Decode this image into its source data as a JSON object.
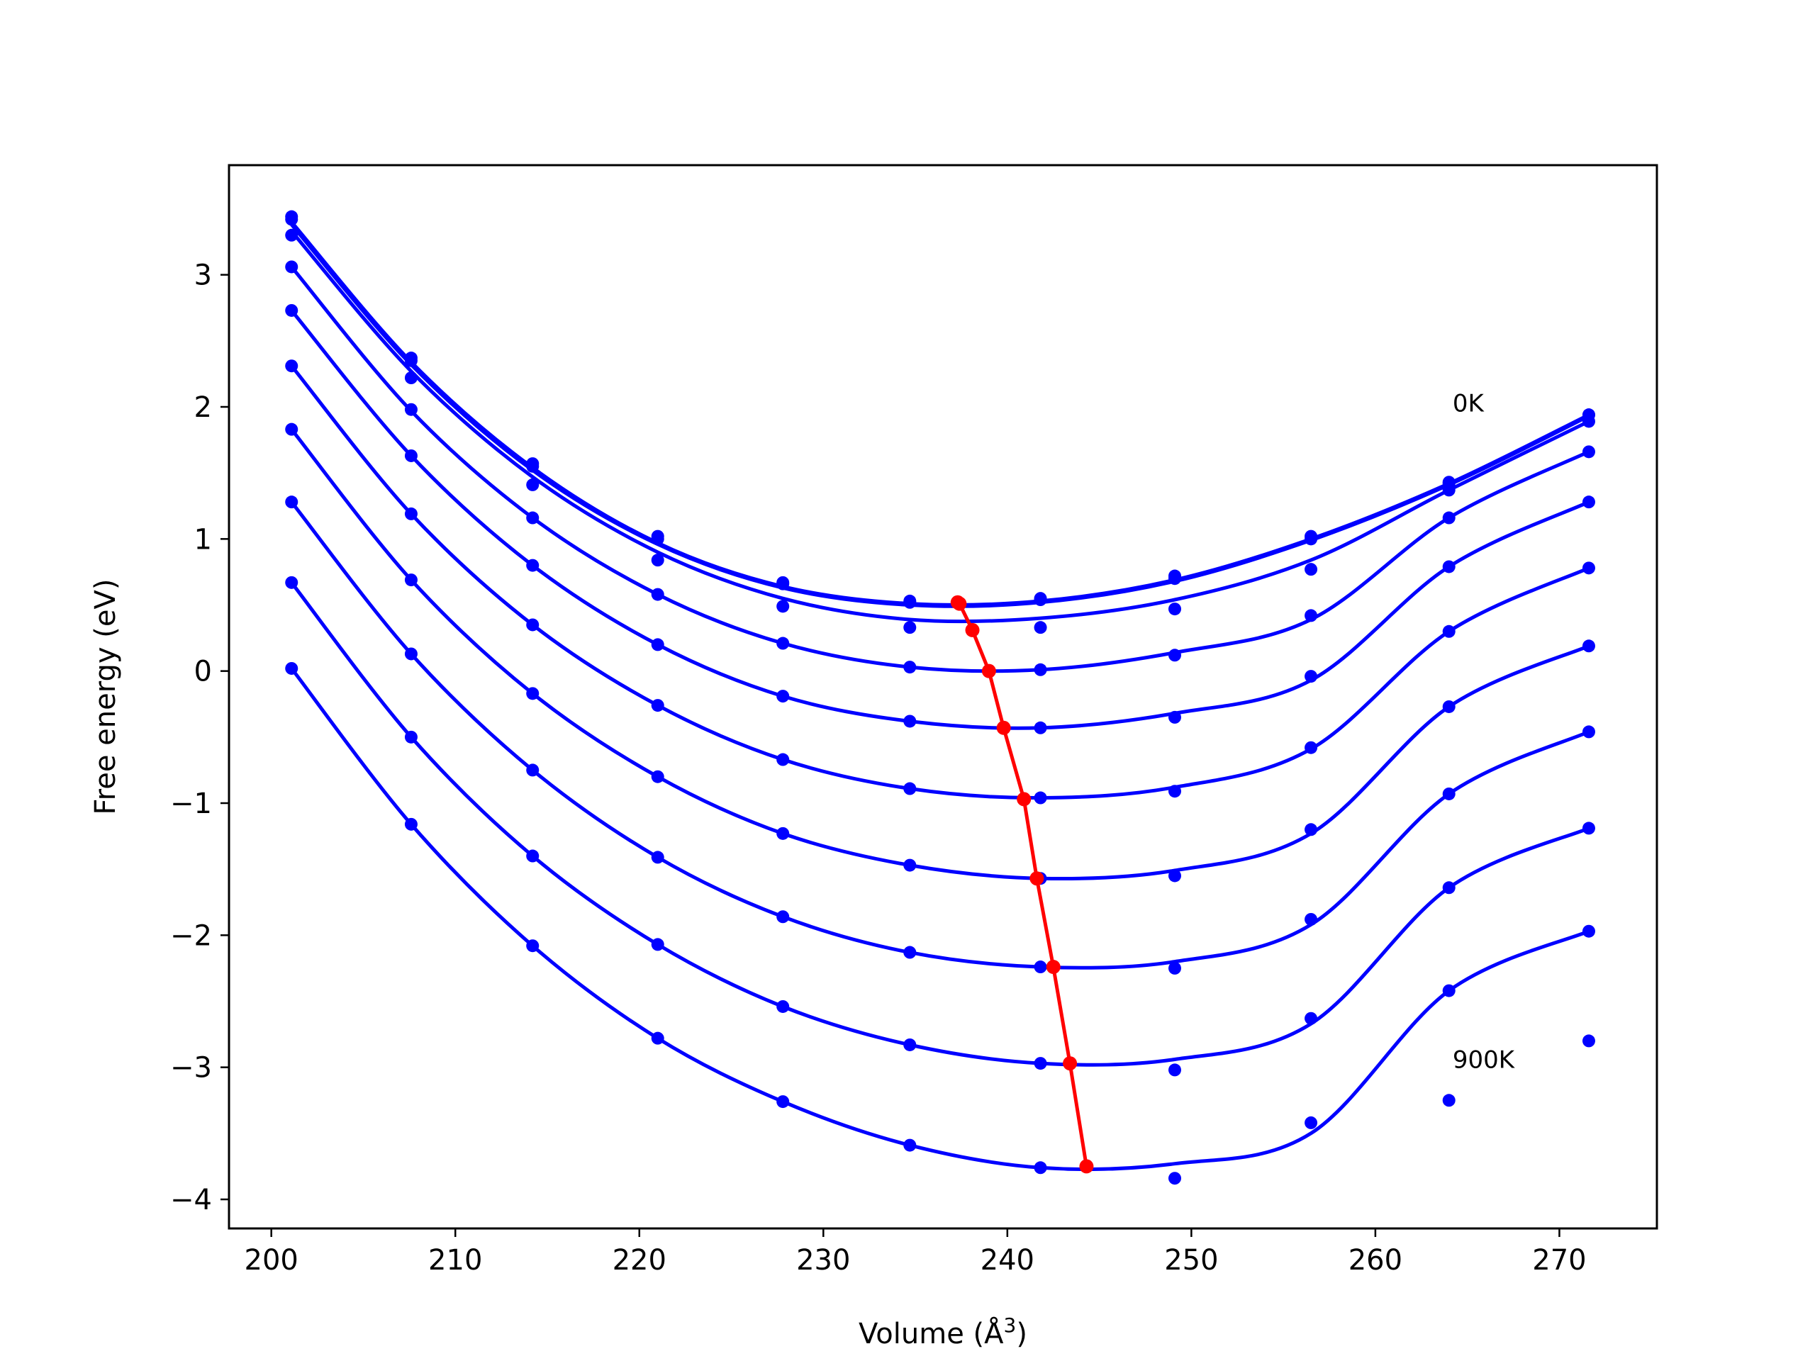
{
  "chart_data": {
    "type": "line",
    "title": "",
    "xlabel": "Volume (Å",
    "xlabel_sup": "3",
    "xlabel_end": ")",
    "ylabel": "Free energy (eV)",
    "xlim": [
      197.7,
      275.3
    ],
    "ylim": [
      -4.22,
      3.83
    ],
    "xticks": [
      200,
      210,
      220,
      230,
      240,
      250,
      260,
      270
    ],
    "yticks": [
      -4,
      -3,
      -2,
      -1,
      0,
      1,
      2,
      3
    ],
    "grid": false,
    "colors": {
      "fit": "#0000ff",
      "minima": "#ff0000",
      "frame": "#000000"
    },
    "annotations": [
      {
        "text": "0K",
        "x": 264.2,
        "y": 2.03
      },
      {
        "text": "900K",
        "x": 264.2,
        "y": -2.94
      }
    ],
    "volumes": [
      201.1,
      207.6,
      214.2,
      221.0,
      227.8,
      234.7,
      241.8,
      249.1,
      256.5,
      264.0,
      271.6
    ],
    "series": [
      {
        "values": [
          3.44,
          2.37,
          1.57,
          1.02,
          0.67,
          0.53,
          0.55,
          0.72,
          1.02,
          1.43,
          1.94
        ],
        "fit": [
          3.4,
          2.34,
          1.54,
          0.97,
          0.64,
          0.51,
          0.53,
          0.69,
          1.0,
          1.42,
          1.94
        ]
      },
      {
        "values": [
          3.42,
          2.35,
          1.55,
          1.0,
          0.66,
          0.52,
          0.54,
          0.7,
          1.0,
          1.42,
          1.94
        ],
        "fit": [
          3.38,
          2.32,
          1.52,
          0.96,
          0.63,
          0.5,
          0.52,
          0.68,
          0.99,
          1.41,
          1.93
        ]
      },
      {
        "values": [
          3.3,
          2.22,
          1.41,
          0.84,
          0.49,
          0.33,
          0.33,
          0.47,
          0.77,
          1.37,
          1.89
        ],
        "fit": [
          3.33,
          2.27,
          1.47,
          0.9,
          0.55,
          0.39,
          0.4,
          0.54,
          0.84,
          1.37,
          1.89
        ]
      },
      {
        "values": [
          3.06,
          1.98,
          1.16,
          0.58,
          0.21,
          0.03,
          0.01,
          0.12,
          0.42,
          1.16,
          1.66
        ],
        "fit": [
          3.06,
          1.97,
          1.16,
          0.58,
          0.21,
          0.03,
          0.01,
          0.14,
          0.39,
          1.16,
          1.66
        ]
      },
      {
        "values": [
          2.73,
          1.63,
          0.8,
          0.2,
          -0.19,
          -0.38,
          -0.43,
          -0.35,
          -0.04,
          0.79,
          1.28
        ],
        "fit": [
          2.73,
          1.63,
          0.8,
          0.2,
          -0.19,
          -0.38,
          -0.43,
          -0.32,
          -0.07,
          0.79,
          1.28
        ]
      },
      {
        "values": [
          2.31,
          1.19,
          0.35,
          -0.26,
          -0.67,
          -0.89,
          -0.96,
          -0.91,
          -0.58,
          0.3,
          0.78
        ],
        "fit": [
          2.31,
          1.19,
          0.35,
          -0.26,
          -0.67,
          -0.89,
          -0.96,
          -0.88,
          -0.59,
          0.3,
          0.78
        ]
      },
      {
        "values": [
          1.83,
          0.69,
          -0.17,
          -0.8,
          -1.23,
          -1.47,
          -1.57,
          -1.55,
          -1.2,
          -0.27,
          0.19
        ],
        "fit": [
          1.83,
          0.69,
          -0.17,
          -0.8,
          -1.23,
          -1.47,
          -1.57,
          -1.51,
          -1.23,
          -0.27,
          0.19
        ]
      },
      {
        "values": [
          1.28,
          0.13,
          -0.75,
          -1.41,
          -1.86,
          -2.13,
          -2.24,
          -2.25,
          -1.88,
          -0.93,
          -0.46
        ],
        "fit": [
          1.28,
          0.13,
          -0.75,
          -1.41,
          -1.86,
          -2.13,
          -2.24,
          -2.2,
          -1.92,
          -0.93,
          -0.46
        ]
      },
      {
        "values": [
          0.67,
          -0.5,
          -1.4,
          -2.07,
          -2.54,
          -2.83,
          -2.97,
          -3.02,
          -2.63,
          -1.64,
          -1.19
        ],
        "fit": [
          0.67,
          -0.5,
          -1.4,
          -2.07,
          -2.54,
          -2.83,
          -2.97,
          -2.94,
          -2.67,
          -1.64,
          -1.19
        ]
      },
      {
        "values": [
          0.02,
          -1.16,
          -2.08,
          -2.78,
          -3.26,
          -3.59,
          -3.76,
          -3.84,
          -3.42,
          -2.42,
          -1.97
        ],
        "fit": [
          0.02,
          -1.16,
          -2.08,
          -2.78,
          -3.26,
          -3.59,
          -3.76,
          -3.73,
          -3.5,
          -2.42,
          -1.97
        ]
      }
    ],
    "extra_points": [
      {
        "x": 264.0,
        "y": -3.25
      },
      {
        "x": 271.6,
        "y": -2.8
      }
    ],
    "minima": {
      "x": [
        237.3,
        237.4,
        238.1,
        239.0,
        239.8,
        240.9,
        241.6,
        242.5,
        243.4,
        244.3
      ],
      "y": [
        0.52,
        0.51,
        0.31,
        0.0,
        -0.43,
        -0.97,
        -1.57,
        -2.24,
        -2.97,
        -3.75
      ]
    }
  }
}
